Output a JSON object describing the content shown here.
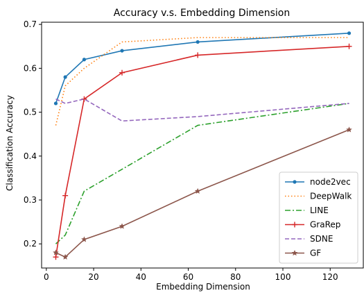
{
  "chart_data": {
    "type": "line",
    "title": "Accuracy v.s. Embedding Dimension",
    "xlabel": "Embedding Dimension",
    "ylabel": "Classification Accuracy",
    "xlim": [
      -2,
      134
    ],
    "ylim": [
      0.145,
      0.705
    ],
    "xticks": [
      0,
      20,
      40,
      60,
      80,
      100,
      120
    ],
    "yticks": [
      0.2,
      0.3,
      0.4,
      0.5,
      0.6,
      0.7
    ],
    "grid": false,
    "legend_position": "bottom-right",
    "x": [
      4,
      8,
      16,
      32,
      64,
      128
    ],
    "series": [
      {
        "name": "node2vec",
        "color": "#1f77b4",
        "linestyle": "solid",
        "marker": "dot",
        "values": [
          0.52,
          0.58,
          0.62,
          0.64,
          0.66,
          0.68
        ]
      },
      {
        "name": "DeepWalk",
        "color": "#ff7f0e",
        "linestyle": "dotted",
        "marker": "none",
        "values": [
          0.47,
          0.56,
          0.6,
          0.66,
          0.67,
          0.67
        ]
      },
      {
        "name": "LINE",
        "color": "#2ca02c",
        "linestyle": "dashdot",
        "marker": "none",
        "values": [
          0.2,
          0.22,
          0.32,
          0.37,
          0.47,
          0.52
        ]
      },
      {
        "name": "GraRep",
        "color": "#d62728",
        "linestyle": "solid",
        "marker": "plus",
        "values": [
          0.17,
          0.31,
          0.53,
          0.59,
          0.63,
          0.65
        ]
      },
      {
        "name": "SDNE",
        "color": "#9467bd",
        "linestyle": "dashed",
        "marker": "none",
        "values": [
          0.53,
          0.52,
          0.53,
          0.48,
          0.49,
          0.52
        ]
      },
      {
        "name": "GF",
        "color": "#8c564b",
        "linestyle": "solid",
        "marker": "star",
        "values": [
          0.18,
          0.17,
          0.21,
          0.24,
          0.32,
          0.46
        ]
      }
    ]
  }
}
